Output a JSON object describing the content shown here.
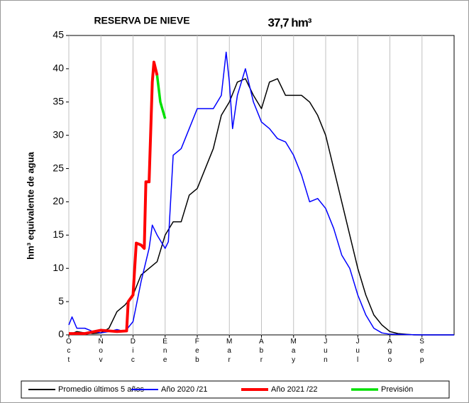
{
  "chart_data": {
    "type": "line",
    "title": "RESERVA DE NIEVE",
    "subtitle": "37,7 hm³",
    "y_label": "hm³ equivalente de agua",
    "xlim": [
      0,
      12
    ],
    "xticks": [
      {
        "value": 0,
        "label": "Oct"
      },
      {
        "value": 1,
        "label": "Nov"
      },
      {
        "value": 2,
        "label": "Dic"
      },
      {
        "value": 3,
        "label": "Ene"
      },
      {
        "value": 4,
        "label": "Feb"
      },
      {
        "value": 5,
        "label": "Mar"
      },
      {
        "value": 6,
        "label": "Abr"
      },
      {
        "value": 7,
        "label": "May"
      },
      {
        "value": 8,
        "label": "Jun"
      },
      {
        "value": 9,
        "label": "Jul"
      },
      {
        "value": 10,
        "label": "Ago"
      },
      {
        "value": 11,
        "label": "Sep"
      }
    ],
    "ylim": [
      0,
      45
    ],
    "yticks": [
      0,
      5,
      10,
      15,
      20,
      25,
      30,
      35,
      40,
      45
    ],
    "xgrid": true,
    "legend": "bottom",
    "series": [
      {
        "name": "Promedio últimos 5 años",
        "color": "#000000",
        "width": 1.5,
        "x": [
          0,
          0.25,
          0.5,
          0.75,
          1,
          1.25,
          1.5,
          1.75,
          2,
          2.25,
          2.5,
          2.75,
          3,
          3.25,
          3.5,
          3.75,
          4,
          4.25,
          4.5,
          4.75,
          5,
          5.25,
          5.5,
          5.75,
          6,
          6.25,
          6.5,
          6.75,
          7,
          7.25,
          7.5,
          7.75,
          8,
          8.25,
          8.5,
          8.75,
          9,
          9.25,
          9.5,
          9.75,
          10,
          10.25,
          10.5,
          10.75,
          11,
          12
        ],
        "values": [
          0,
          0.5,
          0.3,
          0.2,
          0.3,
          1,
          3.5,
          4.5,
          6,
          9,
          10,
          11,
          15,
          17,
          17,
          21,
          22,
          25,
          28,
          33,
          35,
          38,
          38.5,
          36,
          34,
          38,
          38.5,
          36,
          36,
          36,
          35,
          33,
          30,
          25,
          20,
          15,
          10,
          6,
          3,
          1.5,
          0.5,
          0.2,
          0.1,
          0,
          0,
          0
        ]
      },
      {
        "name": "Año 2020 /21",
        "color": "#0000ff",
        "width": 1.5,
        "x": [
          0,
          0.1,
          0.25,
          0.5,
          0.75,
          1,
          1.25,
          1.5,
          1.75,
          2,
          2.25,
          2.5,
          2.6,
          2.75,
          3,
          3.1,
          3.25,
          3.5,
          3.75,
          4,
          4.25,
          4.5,
          4.75,
          4.9,
          5,
          5.1,
          5.25,
          5.5,
          5.75,
          6,
          6.25,
          6.5,
          6.75,
          7,
          7.25,
          7.5,
          7.75,
          8,
          8.25,
          8.5,
          8.75,
          9,
          9.25,
          9.5,
          9.75,
          10,
          11,
          12
        ],
        "values": [
          1.5,
          2.7,
          1,
          1,
          0.5,
          0.3,
          0.5,
          0.8,
          0.5,
          2,
          8,
          13,
          16.5,
          15,
          13,
          14,
          27,
          28,
          31,
          34,
          34,
          34,
          36,
          42.5,
          38,
          31,
          36,
          40,
          35,
          32,
          31,
          29.5,
          29,
          27,
          24,
          20,
          20.5,
          19,
          16,
          12,
          10,
          6,
          3,
          1,
          0.3,
          0.1,
          0,
          0
        ]
      },
      {
        "name": "Año 2021 /22",
        "color": "#ff0000",
        "width": 4,
        "x": [
          0,
          0.5,
          1,
          1.5,
          1.8,
          1.85,
          2,
          2.1,
          2.25,
          2.35,
          2.4,
          2.5,
          2.6,
          2.65,
          2.7,
          2.75
        ],
        "values": [
          0.2,
          0.2,
          0.7,
          0.5,
          0.6,
          5,
          6,
          13.8,
          13.5,
          13,
          23,
          23,
          38,
          41,
          40,
          39
        ]
      },
      {
        "name": "Previsión",
        "color": "#00e000",
        "width": 3.5,
        "x": [
          2.75,
          2.85,
          3
        ],
        "values": [
          39,
          35,
          32.5
        ]
      }
    ]
  }
}
